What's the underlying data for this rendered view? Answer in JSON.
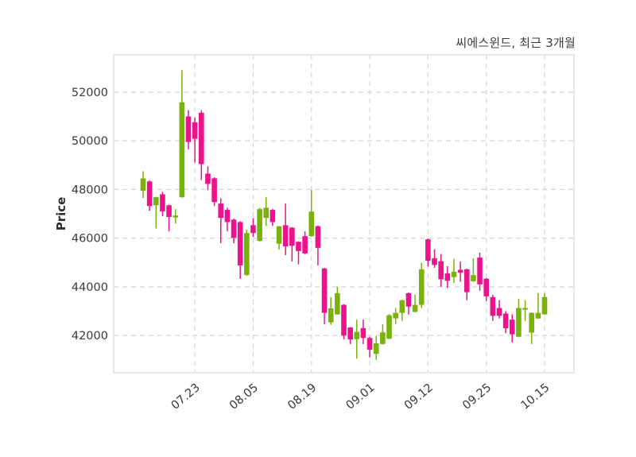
{
  "chart_data": {
    "type": "candlestick",
    "title": "씨에스윈드, 최근 3개월",
    "ylabel": "Price",
    "y_ticks": [
      42000,
      44000,
      46000,
      48000,
      50000,
      52000
    ],
    "ylim": [
      40470,
      53530
    ],
    "x_tick_labels": [
      "07.23",
      "08.05",
      "08.19",
      "09.01",
      "09.12",
      "09.25",
      "10.15"
    ],
    "x_tick_indices": [
      8,
      17,
      26,
      35,
      44,
      53,
      62
    ],
    "grid": true,
    "legend": "none",
    "up_color": "#78b20a",
    "down_color": "#e9148b",
    "grid_color": "#d6d6d6",
    "border_color": "#e1e1e1",
    "tick_label_color": "#3a3a3a",
    "candles_ohlc": [
      [
        47950,
        48750,
        47650,
        48450
      ],
      [
        48330,
        48380,
        47120,
        47320
      ],
      [
        47350,
        47700,
        46400,
        47680
      ],
      [
        47800,
        47900,
        46900,
        47100
      ],
      [
        47350,
        47380,
        46280,
        46870
      ],
      [
        46850,
        47190,
        46600,
        46930
      ],
      [
        47680,
        52900,
        47660,
        51580
      ],
      [
        51000,
        51260,
        49650,
        49950
      ],
      [
        50760,
        50950,
        49100,
        50080
      ],
      [
        51150,
        51260,
        48390,
        49040
      ],
      [
        48650,
        48950,
        47970,
        48230
      ],
      [
        48460,
        48500,
        47320,
        47480
      ],
      [
        47420,
        47640,
        45790,
        46830
      ],
      [
        47160,
        47250,
        46280,
        46660
      ],
      [
        46760,
        46800,
        45790,
        46010
      ],
      [
        46660,
        46700,
        44330,
        44880
      ],
      [
        44490,
        46350,
        44450,
        46210
      ],
      [
        46530,
        46820,
        46050,
        46210
      ],
      [
        45890,
        47250,
        45850,
        47190
      ],
      [
        46830,
        47680,
        46500,
        47250
      ],
      [
        47160,
        47200,
        46500,
        46660
      ],
      [
        45770,
        46500,
        45530,
        46490
      ],
      [
        46530,
        47420,
        45300,
        45660
      ],
      [
        46430,
        46450,
        45040,
        45690
      ],
      [
        45850,
        45870,
        44920,
        45470
      ],
      [
        46080,
        46280,
        45340,
        45370
      ],
      [
        46080,
        47980,
        46060,
        47090
      ],
      [
        46490,
        46520,
        44880,
        45600
      ],
      [
        44750,
        44780,
        42470,
        42930
      ],
      [
        42540,
        43580,
        42440,
        43120
      ],
      [
        42870,
        44000,
        42850,
        43740
      ],
      [
        43260,
        43290,
        41840,
        42000
      ],
      [
        42330,
        42350,
        41650,
        41840
      ],
      [
        41850,
        42650,
        41050,
        42150
      ],
      [
        42300,
        42650,
        41650,
        41900
      ],
      [
        41900,
        41950,
        41100,
        41420
      ],
      [
        41250,
        41980,
        41000,
        41680
      ],
      [
        41650,
        42460,
        41630,
        42130
      ],
      [
        41870,
        42880,
        41850,
        42830
      ],
      [
        42700,
        43130,
        42470,
        42930
      ],
      [
        42930,
        43470,
        42600,
        43450
      ],
      [
        43740,
        43770,
        42870,
        43190
      ],
      [
        42970,
        43680,
        42950,
        43260
      ],
      [
        43260,
        44980,
        43130,
        44720
      ],
      [
        45950,
        45980,
        44840,
        45070
      ],
      [
        45170,
        45540,
        44780,
        44900
      ],
      [
        45050,
        45350,
        44000,
        44310
      ],
      [
        44550,
        44850,
        43950,
        44250
      ],
      [
        44400,
        45150,
        44160,
        44620
      ],
      [
        44700,
        45040,
        44210,
        44580
      ],
      [
        44720,
        44750,
        43450,
        43780
      ],
      [
        44230,
        45170,
        44200,
        44480
      ],
      [
        45200,
        45400,
        43840,
        44100
      ],
      [
        44330,
        44360,
        43420,
        43610
      ],
      [
        43580,
        43680,
        42600,
        42810
      ],
      [
        43130,
        43450,
        42700,
        42810
      ],
      [
        42900,
        43000,
        42100,
        42300
      ],
      [
        42650,
        42870,
        41720,
        42050
      ],
      [
        41950,
        43510,
        41930,
        43130
      ],
      [
        43060,
        43450,
        42600,
        43130
      ],
      [
        42120,
        42950,
        41650,
        42930
      ],
      [
        42700,
        43740,
        42680,
        42930
      ],
      [
        42870,
        43740,
        42850,
        43580
      ]
    ]
  }
}
